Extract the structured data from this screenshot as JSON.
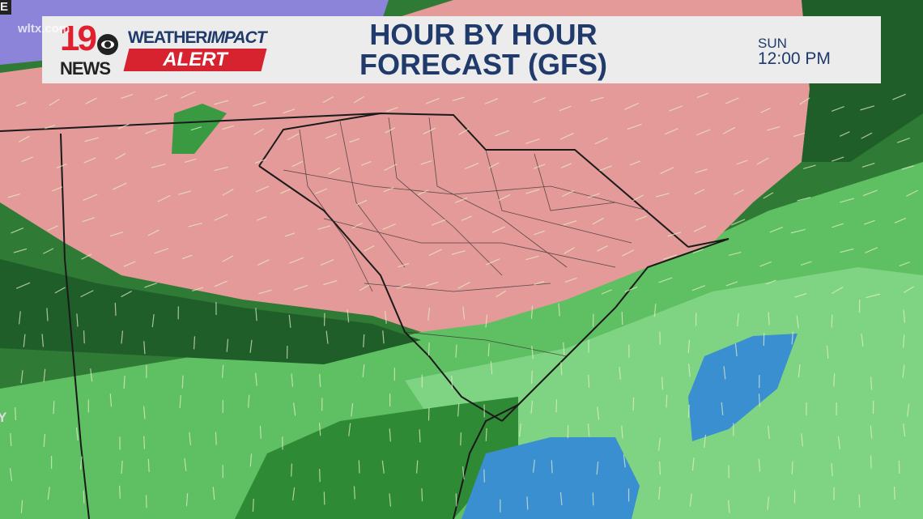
{
  "watermark": "wltx.com",
  "edge_fragments": {
    "top_left": "E",
    "left": "Y"
  },
  "logo": {
    "number": "19",
    "network": "NEWS",
    "brand": "WEATHER",
    "brand_bold": "IMPACT",
    "alert": "ALERT"
  },
  "header": {
    "title_line1": "HOUR BY HOUR",
    "title_line2": "FORECAST (GFS)"
  },
  "time": {
    "day": "SUN",
    "clock": "12:00 PM"
  },
  "colors": {
    "banner_bg": "#ececec",
    "title": "#1f3a6b",
    "alert_red": "#d7222f",
    "pink_mix": "#e39a98",
    "rain_light": "#66c86a",
    "rain_medium": "#3a9a42",
    "rain_dark": "#1f5e28",
    "heavy_blue": "#3a8fd0",
    "snow_purple": "#8b84d8"
  },
  "map": {
    "region": "South Carolina and Southeast US",
    "model": "GFS",
    "layers": [
      "snow",
      "mix",
      "rain",
      "heavy rain"
    ]
  }
}
